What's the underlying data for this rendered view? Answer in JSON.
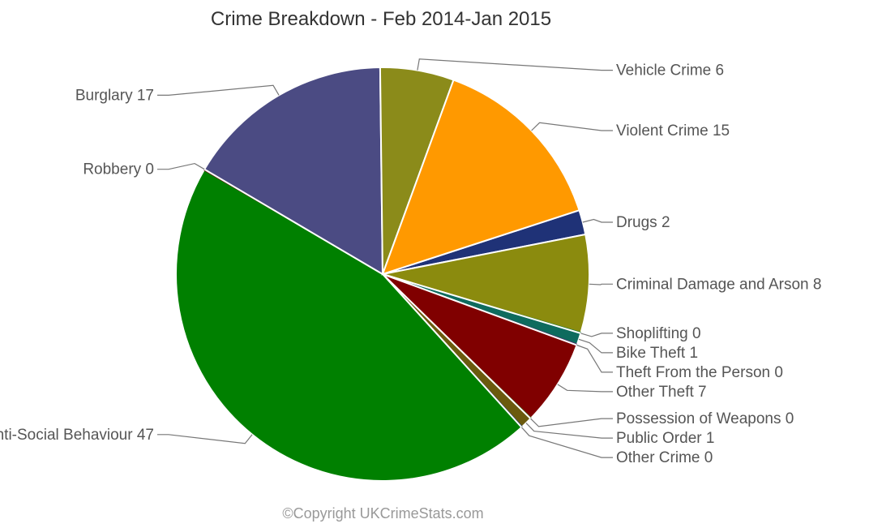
{
  "chart_data": {
    "type": "pie",
    "title": "Crime Breakdown - Feb 2014-Jan 2015",
    "credit": "©Copyright UKCrimeStats.com",
    "slices": [
      {
        "name": "Drugs",
        "value": 2,
        "color": "#1f3277"
      },
      {
        "name": "Criminal Damage and Arson",
        "value": 8,
        "color": "#8b8b0e"
      },
      {
        "name": "Shoplifting",
        "value": 0,
        "color": "#1a7a3c"
      },
      {
        "name": "Bike Theft",
        "value": 1,
        "color": "#0e6b5e"
      },
      {
        "name": "Theft From the Person",
        "value": 0,
        "color": "#5a2a6b"
      },
      {
        "name": "Other Theft",
        "value": 7,
        "color": "#800000"
      },
      {
        "name": "Possession of Weapons",
        "value": 0,
        "color": "#4a6b1a"
      },
      {
        "name": "Public Order",
        "value": 1,
        "color": "#6b5a0e"
      },
      {
        "name": "Other Crime",
        "value": 0,
        "color": "#2a4a6b"
      },
      {
        "name": "Anti-Social Behaviour",
        "value": 47,
        "color": "#008000"
      },
      {
        "name": "Robbery",
        "value": 0,
        "color": "#6b1a1a"
      },
      {
        "name": "Burglary",
        "value": 17,
        "color": "#4b4b83"
      },
      {
        "name": "Vehicle Crime",
        "value": 6,
        "color": "#8b8b1a"
      },
      {
        "name": "Violent Crime",
        "value": 15,
        "color": "#ff9900"
      }
    ]
  }
}
